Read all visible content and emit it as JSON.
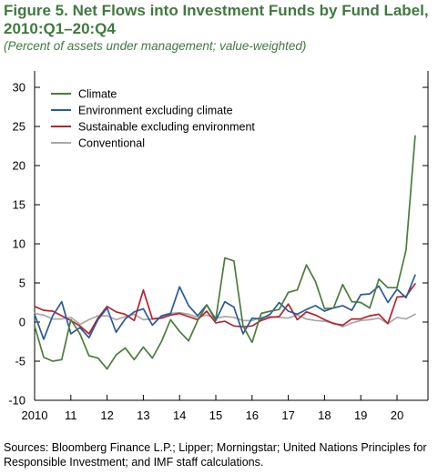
{
  "title": "Figure 5. Net Flows into Investment Funds by Fund Label, 2010:Q1–20:Q4",
  "subtitle": "(Percent of assets under management; value-weighted)",
  "source": "Sources: Bloomberg Finance L.P.; Lipper; Morningstar; United Nations Principles for Responsible Investment; and IMF staff calculations.",
  "chart_data": {
    "type": "line",
    "title": "Figure 5. Net Flows into Investment Funds by Fund Label, 2010:Q1–20:Q4",
    "subtitle": "(Percent of assets under management; value-weighted)",
    "xlabel": "",
    "ylabel": "",
    "ylim": [
      -10,
      30
    ],
    "yticks": [
      -10,
      -5,
      0,
      5,
      10,
      15,
      20,
      25,
      30
    ],
    "x_tick_labels": [
      "2010",
      "11",
      "12",
      "13",
      "14",
      "15",
      "16",
      "17",
      "18",
      "19",
      "20"
    ],
    "x_tick_years": [
      2010,
      2011,
      2012,
      2013,
      2014,
      2015,
      2016,
      2017,
      2018,
      2019,
      2020
    ],
    "grid": false,
    "legend_position": "top-left",
    "colors": {
      "Climate": "#4a7d3a",
      "Environment excluding climate": "#2a5a9c",
      "Sustainable excluding environment": "#b5232c",
      "Conventional": "#a8a8a8"
    },
    "x_start": "2010:Q1",
    "series": [
      {
        "name": "Climate",
        "values": [
          -0.5,
          -4.5,
          -5,
          -4.8,
          0.3,
          -1.5,
          -4.3,
          -4.6,
          -6,
          -4.2,
          -3.3,
          -4.8,
          -3.2,
          -4.6,
          -2.5,
          0.3,
          -1.2,
          -2.4,
          0.2,
          2.2,
          0.4,
          8.2,
          7.8,
          -0.5,
          -2.6,
          1.1,
          1.4,
          1.6,
          3.8,
          4.1,
          7.3,
          5.2,
          1.7,
          1.8,
          4.8,
          2.6,
          2.5,
          1.8,
          5.5,
          4.4,
          4.4,
          9.2,
          23.8
        ]
      },
      {
        "name": "Environment excluding climate",
        "values": [
          1,
          -2.2,
          0.8,
          2.6,
          -1.5,
          -0.7,
          -2,
          0.3,
          1.8,
          -1.3,
          0.4,
          1.3,
          1.7,
          -0.4,
          0.8,
          1.1,
          4.5,
          2.1,
          0.8,
          2.2,
          0.2,
          2.6,
          1.9,
          -1.5,
          0.5,
          0.4,
          1,
          2.5,
          1.4,
          1,
          1.6,
          2.1,
          1.4,
          1.8,
          2.1,
          1.5,
          3.5,
          3.6,
          4.6,
          2.5,
          4.2,
          3.1,
          6
        ]
      },
      {
        "name": "Sustainable excluding environment",
        "values": [
          2,
          1.5,
          1.4,
          0.8,
          0.2,
          -0.5,
          -1.5,
          0.5,
          2,
          1.3,
          1,
          0.2,
          4.1,
          0.4,
          0.5,
          0.9,
          1.1,
          0.7,
          0.3,
          1.4,
          -0.1,
          0.1,
          -0.5,
          -0.6,
          -0.5,
          0.2,
          0.6,
          0.7,
          2.3,
          0.3,
          1.3,
          0.9,
          0.3,
          -0.2,
          -0.4,
          0.4,
          0.4,
          0.8,
          1,
          -0.2,
          3.2,
          3.3,
          4.9
        ]
      },
      {
        "name": "Conventional",
        "values": [
          1.1,
          0.9,
          0.4,
          0.4,
          0.6,
          -0.3,
          0.3,
          0.8,
          0.8,
          0.3,
          0.7,
          1,
          0.3,
          0.4,
          0.6,
          1.1,
          1.2,
          1,
          0.6,
          0.9,
          0.5,
          0.7,
          0.6,
          0.2,
          0.2,
          0.6,
          0.7,
          0.6,
          0.5,
          0.9,
          0.4,
          0.2,
          0.1,
          -0.1,
          -0.6,
          -0.1,
          0.2,
          0.3,
          0.5,
          -0.2,
          0.6,
          0.4,
          1
        ]
      }
    ]
  }
}
